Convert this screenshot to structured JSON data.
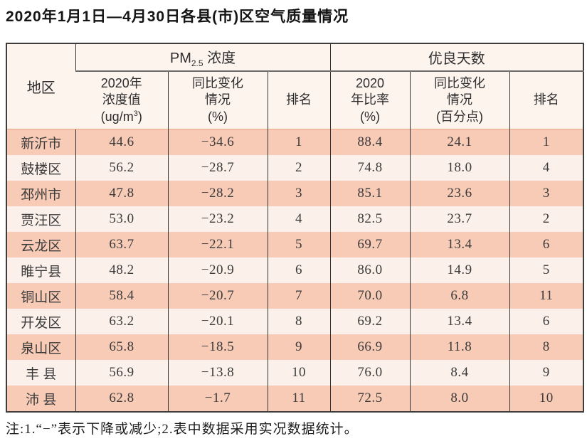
{
  "page": {
    "title": "2020年1月1日—4月30日各县(市)区空气质量情况",
    "note": "注:1.“−”表示下降或减少;2.表中数据采用实况数据统计。"
  },
  "table": {
    "corner_header": "地区",
    "group_pm25": {
      "prefix": "PM",
      "sub": "2.5",
      "suffix": " 浓度"
    },
    "group_good_days": "优良天数",
    "subheaders": {
      "pm_value_line1": "2020年",
      "pm_value_line2": "浓度值",
      "pm_value_unit": {
        "prefix": "(ug/m",
        "sup": "3",
        "suffix": ")"
      },
      "pm_change_line1": "同比变化",
      "pm_change_line2": "情况",
      "pm_change_line3": "(%)",
      "pm_rank": "排名",
      "ratio_line1": "2020",
      "ratio_line2": "年比率",
      "ratio_line3": "(%)",
      "ratio_change_line1": "同比变化",
      "ratio_change_line2": "情况",
      "ratio_change_line3": "(百分点)",
      "good_rank": "排名"
    },
    "rows": [
      {
        "region": "新沂市",
        "pm25": "44.6",
        "pm25_change": "−34.6",
        "pm25_rank": "1",
        "good_ratio": "88.4",
        "good_change": "24.1",
        "good_rank": "1"
      },
      {
        "region": "鼓楼区",
        "pm25": "56.2",
        "pm25_change": "−28.7",
        "pm25_rank": "2",
        "good_ratio": "74.8",
        "good_change": "18.0",
        "good_rank": "4"
      },
      {
        "region": "邳州市",
        "pm25": "47.8",
        "pm25_change": "−28.2",
        "pm25_rank": "3",
        "good_ratio": "85.1",
        "good_change": "23.6",
        "good_rank": "3"
      },
      {
        "region": "贾汪区",
        "pm25": "53.0",
        "pm25_change": "−23.2",
        "pm25_rank": "4",
        "good_ratio": "82.5",
        "good_change": "23.7",
        "good_rank": "2"
      },
      {
        "region": "云龙区",
        "pm25": "63.7",
        "pm25_change": "−22.1",
        "pm25_rank": "5",
        "good_ratio": "69.7",
        "good_change": "13.4",
        "good_rank": "6"
      },
      {
        "region": "睢宁县",
        "pm25": "48.2",
        "pm25_change": "−20.9",
        "pm25_rank": "6",
        "good_ratio": "86.0",
        "good_change": "14.9",
        "good_rank": "5"
      },
      {
        "region": "铜山区",
        "pm25": "58.4",
        "pm25_change": "−20.7",
        "pm25_rank": "7",
        "good_ratio": "70.0",
        "good_change": "6.8",
        "good_rank": "11"
      },
      {
        "region": "开发区",
        "pm25": "63.2",
        "pm25_change": "−20.1",
        "pm25_rank": "8",
        "good_ratio": "69.2",
        "good_change": "13.4",
        "good_rank": "6"
      },
      {
        "region": "泉山区",
        "pm25": "65.8",
        "pm25_change": "−18.5",
        "pm25_rank": "9",
        "good_ratio": "66.9",
        "good_change": "11.8",
        "good_rank": "8"
      },
      {
        "region": "丰 县",
        "pm25": "56.9",
        "pm25_change": "−13.8",
        "pm25_rank": "10",
        "good_ratio": "76.0",
        "good_change": "8.4",
        "good_rank": "9"
      },
      {
        "region": "沛 县",
        "pm25": "62.8",
        "pm25_change": "−1.7",
        "pm25_rank": "11",
        "good_ratio": "72.5",
        "good_change": "8.0",
        "good_rank": "10"
      }
    ]
  },
  "colors": {
    "row_band_dark": "#f8cbb6",
    "row_band_light": "#fcf1ea",
    "header_background": "#fdf4ee",
    "grid_line": "#333333",
    "outer_border": "#3c3c3c",
    "header_underline": "#6b6b6b",
    "header_data_separator": "#e7a287"
  }
}
